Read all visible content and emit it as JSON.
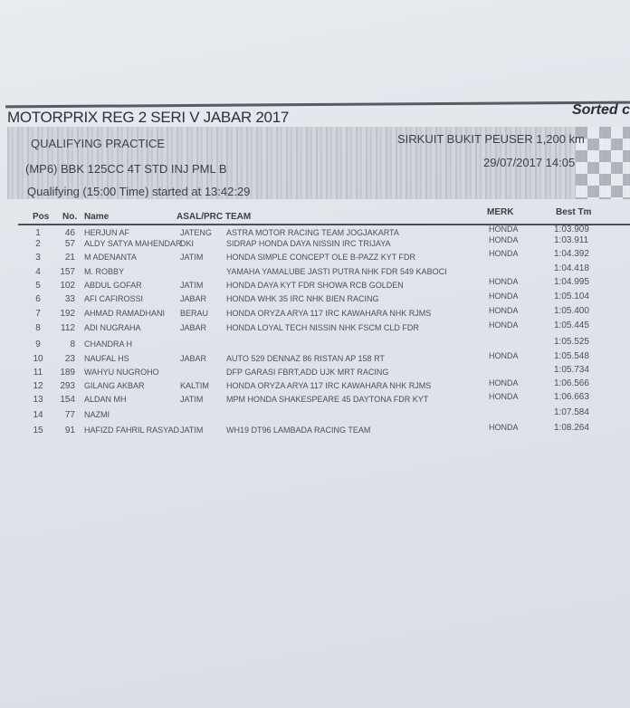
{
  "header": {
    "title": "MOTORPRIX REG 2 SERI V JABAR 2017",
    "sorted": "Sorted c",
    "session": "QUALIFYING PRACTICE",
    "class": "(MP6) BBK 125CC 4T STD INJ PML B",
    "start": "Qualifying (15:00 Time) started at 13:42:29",
    "circuit": "SIRKUIT BUKIT PEUSER 1,200 km",
    "datetime": "29/07/2017 14:05"
  },
  "columns": {
    "pos": "Pos",
    "no": "No.",
    "name": "Name",
    "asal_team": "ASAL/PRC TEAM",
    "merk": "MERK",
    "best": "Best Tm"
  },
  "rows": [
    {
      "pos": "1",
      "no": "46",
      "name": "HERJUN AF",
      "asal": "JATENG",
      "team": "ASTRA MOTOR RACING TEAM JOGJAKARTA",
      "merk": "HONDA",
      "best": "1:03.909"
    },
    {
      "pos": "2",
      "no": "57",
      "name": "ALDY SATYA MAHENDAR",
      "asal": "DKI",
      "team": "SIDRAP HONDA DAYA NISSIN IRC TRIJAYA",
      "merk": "HONDA",
      "best": "1:03.911"
    },
    {
      "pos": "3",
      "no": "21",
      "name": "M ADENANTA",
      "asal": "JATIM",
      "team": "HONDA SIMPLE CONCEPT OLE B-PAZZ KYT FDR",
      "merk": "HONDA",
      "best": "1:04.392"
    },
    {
      "pos": "4",
      "no": "157",
      "name": "M. ROBBY",
      "asal": "",
      "team": "YAMAHA YAMALUBE JASTI PUTRA NHK FDR 549 KABOCI",
      "merk": "",
      "best": "1:04.418"
    },
    {
      "pos": "5",
      "no": "102",
      "name": "ABDUL GOFAR",
      "asal": "JATIM",
      "team": "HONDA DAYA KYT FDR SHOWA RCB GOLDEN",
      "merk": "HONDA",
      "best": "1:04.995"
    },
    {
      "pos": "6",
      "no": "33",
      "name": "AFI CAFIROSSI",
      "asal": "JABAR",
      "team": "HONDA WHK 35 IRC NHK BIEN RACING",
      "merk": "HONDA",
      "best": "1:05.104"
    },
    {
      "pos": "7",
      "no": "192",
      "name": "AHMAD RAMADHANI",
      "asal": "BERAU",
      "team": "HONDA ORYZA ARYA 117 IRC KAWAHARA NHK RJMS",
      "merk": "HONDA",
      "best": "1:05.400"
    },
    {
      "pos": "8",
      "no": "112",
      "name": "ADI NUGRAHA",
      "asal": "JABAR",
      "team": "HONDA LOYAL TECH NISSIN NHK FSCM CLD FDR",
      "merk": "HONDA",
      "best": "1:05.445"
    },
    {
      "pos": "9",
      "no": "8",
      "name": "CHANDRA H",
      "asal": "",
      "team": "",
      "merk": "",
      "best": "1:05.525"
    },
    {
      "pos": "10",
      "no": "23",
      "name": "NAUFAL HS",
      "asal": "JABAR",
      "team": "AUTO 529 DENNAZ 86 RISTAN AP 158 RT",
      "merk": "HONDA",
      "best": "1:05.548"
    },
    {
      "pos": "11",
      "no": "189",
      "name": "WAHYU NUGROHO",
      "asal": "",
      "team": "DFP GARASI FBRT,ADD UJK MRT RACING",
      "merk": "",
      "best": "1:05.734"
    },
    {
      "pos": "12",
      "no": "293",
      "name": "GILANG AKBAR",
      "asal": "KALTIM",
      "team": "HONDA ORYZA ARYA 117 IRC KAWAHARA NHK RJMS",
      "merk": "HONDA",
      "best": "1:06.566"
    },
    {
      "pos": "13",
      "no": "154",
      "name": "ALDAN MH",
      "asal": "JATIM",
      "team": "MPM HONDA SHAKESPEARE 45 DAYTONA FDR KYT",
      "merk": "HONDA",
      "best": "1:06.663"
    },
    {
      "pos": "14",
      "no": "77",
      "name": "NAZMI",
      "asal": "",
      "team": "",
      "merk": "",
      "best": "1:07.584"
    },
    {
      "pos": "15",
      "no": "91",
      "name": "HAFIZD FAHRIL RASYAD",
      "asal": "JATIM",
      "team": "WH19 DT96 LAMBADA RACING TEAM",
      "merk": "HONDA",
      "best": "1:08.264"
    }
  ]
}
